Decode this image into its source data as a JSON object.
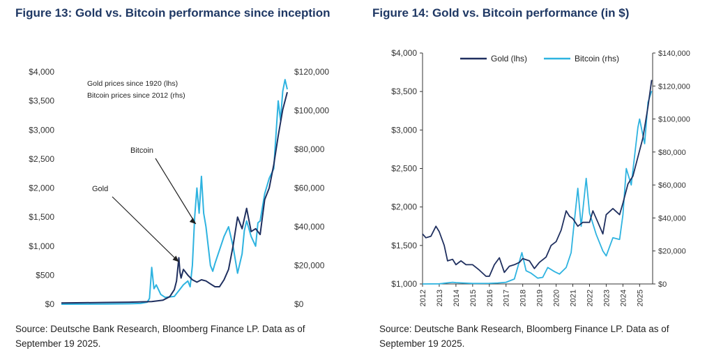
{
  "figures": [
    {
      "title": "Figure 13: Gold vs. Bitcoin performance since inception",
      "source_line1": "Source: Deutsche Bank Research, Bloomberg Finance LP. Data as of",
      "source_line2": "September 19 2025."
    },
    {
      "title": "Figure 14: Gold vs. Bitcoin performance (in $)",
      "source_line1": "Source: Deutsche Bank Research, Bloomberg Finance LP. Data as of",
      "source_line2": "September 19 2025."
    }
  ],
  "chart_data": [
    {
      "type": "line",
      "title": "Figure 13: Gold vs. Bitcoin performance since inception",
      "xlabel": "",
      "ylabel_left": "",
      "ylabel_right": "",
      "left_axis": {
        "ticks": [
          "$0",
          "$500",
          "$1,000",
          "$1,500",
          "$2,000",
          "$2,500",
          "$3,000",
          "$3,500",
          "$4,000"
        ],
        "range": [
          0,
          4000
        ]
      },
      "right_axis": {
        "ticks": [
          "$0",
          "$20,000",
          "$40,000",
          "$60,000",
          "$80,000",
          "$100,000",
          "$120,000"
        ],
        "range": [
          0,
          120000
        ]
      },
      "notes": [
        "Gold prices since 1920 (lhs)",
        "Bitcoin prices since 2012 (rhs)"
      ],
      "annotations": [
        {
          "text": "Bitcoin",
          "points_to_x": 0.595
        },
        {
          "text": "Gold",
          "points_to_x": 0.52
        }
      ],
      "grid": false,
      "colors": {
        "Gold": "#1f2f5f",
        "Bitcoin": "#2eb3e0"
      },
      "series": [
        {
          "label": "Gold",
          "axis": "left",
          "x": [
            0,
            0.1,
            0.2,
            0.3,
            0.4,
            0.45,
            0.48,
            0.5,
            0.51,
            0.52,
            0.525,
            0.53,
            0.54,
            0.56,
            0.58,
            0.6,
            0.62,
            0.64,
            0.66,
            0.68,
            0.7,
            0.72,
            0.74,
            0.76,
            0.78,
            0.8,
            0.82,
            0.84,
            0.86,
            0.88,
            0.9,
            0.92,
            0.94,
            0.96,
            0.98,
            1.0
          ],
          "values": [
            20,
            25,
            30,
            35,
            45,
            70,
            130,
            250,
            400,
            800,
            550,
            450,
            600,
            500,
            420,
            380,
            420,
            400,
            350,
            300,
            300,
            420,
            600,
            1000,
            1500,
            1300,
            1650,
            1250,
            1300,
            1200,
            1800,
            2000,
            2400,
            2900,
            3350,
            3650
          ]
        },
        {
          "label": "Bitcoin",
          "axis": "right",
          "x": [
            0,
            0.2,
            0.3,
            0.35,
            0.38,
            0.39,
            0.4,
            0.41,
            0.42,
            0.44,
            0.46,
            0.5,
            0.52,
            0.54,
            0.56,
            0.57,
            0.58,
            0.59,
            0.6,
            0.61,
            0.62,
            0.63,
            0.64,
            0.65,
            0.66,
            0.67,
            0.68,
            0.7,
            0.72,
            0.74,
            0.76,
            0.78,
            0.8,
            0.81,
            0.82,
            0.84,
            0.86,
            0.87,
            0.88,
            0.9,
            0.92,
            0.94,
            0.96,
            0.97,
            0.98,
            0.99,
            1.0
          ],
          "values": [
            0,
            100,
            200,
            400,
            1000,
            3000,
            19000,
            8000,
            10000,
            5000,
            3500,
            4000,
            7000,
            10000,
            12000,
            9000,
            20000,
            45000,
            60000,
            47000,
            66000,
            47000,
            40000,
            30000,
            20000,
            17000,
            21000,
            28000,
            35000,
            40000,
            30000,
            16000,
            26000,
            38000,
            43000,
            35000,
            30000,
            42000,
            43000,
            57000,
            65000,
            70000,
            105000,
            95000,
            110000,
            116000,
            111000
          ]
        }
      ]
    },
    {
      "type": "line",
      "title": "Figure 14: Gold vs. Bitcoin performance (in $)",
      "xlabel": "",
      "ylabel_left": "",
      "ylabel_right": "",
      "x_ticks": [
        "2012",
        "2013",
        "2014",
        "2015",
        "2016",
        "2017",
        "2018",
        "2019",
        "2020",
        "2021",
        "2022",
        "2023",
        "2024",
        "2025"
      ],
      "left_axis": {
        "ticks": [
          "$1,000",
          "$1,500",
          "$2,000",
          "$2,500",
          "$3,000",
          "$3,500",
          "$4,000"
        ],
        "range": [
          1000,
          4000
        ]
      },
      "right_axis": {
        "ticks": [
          "$0",
          "$20,000",
          "$40,000",
          "$60,000",
          "$80,000",
          "$100,000",
          "$120,000",
          "$140,000"
        ],
        "range": [
          0,
          140000
        ]
      },
      "legend": {
        "position": "top",
        "entries": [
          "Gold (lhs)",
          "Bitcoin (rhs)"
        ]
      },
      "grid": false,
      "colors": {
        "Gold (lhs)": "#1f2f5f",
        "Bitcoin (rhs)": "#2eb3e0"
      },
      "series": [
        {
          "name": "Gold (lhs)",
          "axis": "left",
          "x": [
            2012.0,
            2012.2,
            2012.5,
            2012.8,
            2013.0,
            2013.3,
            2013.5,
            2013.8,
            2014.0,
            2014.3,
            2014.6,
            2015.0,
            2015.4,
            2015.8,
            2016.0,
            2016.3,
            2016.6,
            2016.9,
            2017.2,
            2017.5,
            2017.8,
            2018.0,
            2018.4,
            2018.7,
            2019.0,
            2019.4,
            2019.7,
            2020.0,
            2020.3,
            2020.6,
            2020.8,
            2021.0,
            2021.3,
            2021.6,
            2022.0,
            2022.2,
            2022.5,
            2022.8,
            2023.0,
            2023.4,
            2023.8,
            2024.0,
            2024.3,
            2024.6,
            2024.9,
            2025.2,
            2025.5,
            2025.72
          ],
          "values": [
            1650,
            1600,
            1620,
            1750,
            1680,
            1500,
            1300,
            1320,
            1250,
            1300,
            1250,
            1250,
            1180,
            1100,
            1100,
            1250,
            1340,
            1150,
            1230,
            1250,
            1280,
            1330,
            1300,
            1200,
            1280,
            1350,
            1500,
            1550,
            1700,
            1950,
            1880,
            1850,
            1750,
            1800,
            1800,
            1950,
            1800,
            1650,
            1900,
            1980,
            1900,
            2050,
            2300,
            2400,
            2650,
            2900,
            3300,
            3650
          ]
        },
        {
          "name": "Bitcoin (rhs)",
          "axis": "right",
          "x": [
            2012.0,
            2013.0,
            2013.8,
            2014.0,
            2015.0,
            2016.0,
            2016.5,
            2017.0,
            2017.5,
            2017.95,
            2018.2,
            2018.5,
            2018.9,
            2019.2,
            2019.5,
            2019.9,
            2020.2,
            2020.6,
            2020.9,
            2021.0,
            2021.3,
            2021.5,
            2021.8,
            2022.0,
            2022.4,
            2022.8,
            2023.0,
            2023.4,
            2023.8,
            2024.0,
            2024.2,
            2024.5,
            2024.9,
            2025.0,
            2025.3,
            2025.5,
            2025.72
          ],
          "values": [
            10,
            100,
            1000,
            800,
            300,
            400,
            600,
            1000,
            3000,
            19000,
            8000,
            6500,
            3500,
            4000,
            10000,
            7500,
            6000,
            10000,
            19000,
            29000,
            58000,
            35000,
            64000,
            43000,
            30000,
            20000,
            17000,
            28000,
            27000,
            42000,
            70000,
            60000,
            95000,
            100000,
            85000,
            110000,
            117000
          ]
        }
      ]
    }
  ]
}
